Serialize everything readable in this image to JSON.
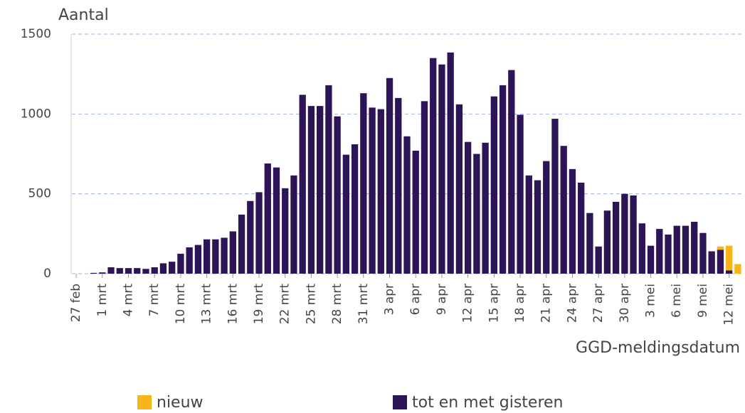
{
  "chart_data": {
    "type": "bar",
    "stacked": true,
    "y_label": "Aantal",
    "x_label": "GGD-meldingsdatum",
    "categories": [
      "27 feb",
      null,
      null,
      "1 mrt",
      null,
      null,
      "4 mrt",
      null,
      null,
      "7 mrt",
      null,
      null,
      "10 mrt",
      null,
      null,
      "13 mrt",
      null,
      null,
      "16 mrt",
      null,
      null,
      "19 mrt",
      null,
      null,
      "22 mrt",
      null,
      null,
      "25 mrt",
      null,
      null,
      "28 mrt",
      null,
      null,
      "31 mrt",
      null,
      null,
      "3 apr",
      null,
      null,
      "6 apr",
      null,
      null,
      "9 apr",
      null,
      null,
      "12 apr",
      null,
      null,
      "15 apr",
      null,
      null,
      "18 apr",
      null,
      null,
      "21 apr",
      null,
      null,
      "24 apr",
      null,
      null,
      "27 apr",
      null,
      null,
      "30 apr",
      null,
      null,
      "3 mei",
      null,
      null,
      "6 mei",
      null,
      null,
      "9 mei",
      null,
      null,
      "12 mei",
      null
    ],
    "series": [
      {
        "name": "nieuw",
        "color": "#f7b519",
        "values": [
          0,
          0,
          0,
          0,
          0,
          0,
          0,
          0,
          0,
          0,
          0,
          0,
          0,
          0,
          0,
          0,
          0,
          0,
          0,
          0,
          0,
          0,
          0,
          0,
          0,
          0,
          0,
          0,
          0,
          0,
          0,
          0,
          0,
          0,
          0,
          0,
          0,
          0,
          0,
          0,
          0,
          0,
          0,
          0,
          0,
          0,
          0,
          0,
          0,
          0,
          0,
          0,
          0,
          0,
          0,
          0,
          0,
          0,
          0,
          0,
          0,
          0,
          0,
          0,
          0,
          0,
          0,
          0,
          0,
          0,
          0,
          0,
          0,
          0,
          20,
          155,
          60
        ]
      },
      {
        "name": "tot en met gisteren",
        "color": "#2d1456",
        "values": [
          0,
          0,
          5,
          8,
          40,
          35,
          35,
          35,
          30,
          40,
          65,
          75,
          125,
          165,
          180,
          215,
          215,
          225,
          265,
          370,
          455,
          510,
          690,
          665,
          535,
          615,
          1120,
          1050,
          1050,
          1180,
          985,
          745,
          810,
          1130,
          1040,
          1030,
          1225,
          1100,
          860,
          770,
          1080,
          1350,
          1310,
          1385,
          1060,
          825,
          750,
          820,
          1110,
          1180,
          1275,
          995,
          615,
          585,
          705,
          970,
          800,
          655,
          570,
          380,
          170,
          395,
          450,
          500,
          490,
          315,
          175,
          280,
          245,
          300,
          300,
          325,
          255,
          140,
          150,
          20,
          0
        ]
      }
    ],
    "ylim": [
      0,
      1500
    ],
    "yticks": [
      0,
      500,
      1000,
      1500
    ],
    "grid": true
  }
}
